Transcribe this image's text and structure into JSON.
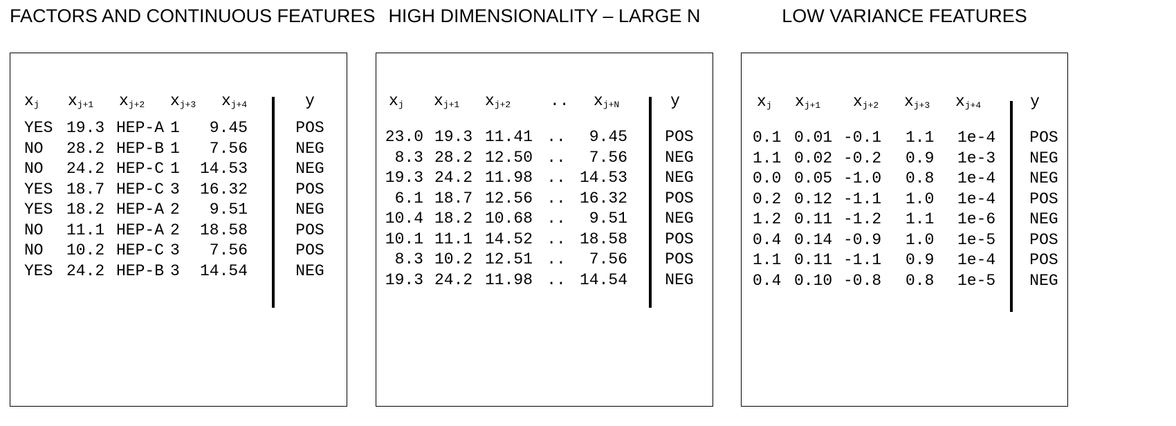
{
  "titles": {
    "left": "FACTORS AND CONTINUOUS FEATURES",
    "middle": "HIGH DIMENSIONALITY – LARGE N",
    "right": "LOW VARIANCE FEATURES"
  },
  "panel1": {
    "headers": [
      {
        "base": "x",
        "sub": "j"
      },
      {
        "base": "x",
        "sub": "j+1"
      },
      {
        "base": "x",
        "sub": "j+2"
      },
      {
        "base": "x",
        "sub": "j+3"
      },
      {
        "base": "x",
        "sub": "j+4"
      },
      {
        "base": "y",
        "sub": ""
      }
    ],
    "columns": [
      [
        "YES",
        "NO",
        "NO",
        "YES",
        "YES",
        "NO",
        "NO",
        "YES"
      ],
      [
        "19.3",
        "28.2",
        "24.2",
        "18.7",
        "18.2",
        "11.1",
        "10.2",
        "24.2"
      ],
      [
        "HEP-A",
        "HEP-B",
        "HEP-C",
        "HEP-C",
        "HEP-A",
        "HEP-A",
        "HEP-C",
        "HEP-B"
      ],
      [
        "1",
        "1",
        "1",
        "3",
        "2",
        "2",
        "3",
        "3"
      ],
      [
        "9.45",
        "7.56",
        "14.53",
        "16.32",
        "9.51",
        "18.58",
        "7.56",
        "14.54"
      ],
      [
        "POS",
        "NEG",
        "NEG",
        "POS",
        "NEG",
        "POS",
        "POS",
        "NEG"
      ]
    ]
  },
  "panel2": {
    "headers": [
      {
        "base": "x",
        "sub": "j"
      },
      {
        "base": "x",
        "sub": "j+1"
      },
      {
        "base": "x",
        "sub": "j+2"
      },
      {
        "base": "..",
        "sub": ""
      },
      {
        "base": "x",
        "sub": "j+N"
      },
      {
        "base": "y",
        "sub": ""
      }
    ],
    "columns": [
      [
        "23.0",
        "8.3",
        "19.3",
        "6.1",
        "10.4",
        "10.1",
        "8.3",
        "19.3"
      ],
      [
        "19.3",
        "28.2",
        "24.2",
        "18.7",
        "18.2",
        "11.1",
        "10.2",
        "24.2"
      ],
      [
        "11.41",
        "12.50",
        "11.98",
        "12.56",
        "10.68",
        "14.52",
        "12.51",
        "11.98"
      ],
      [
        "..",
        "..",
        "..",
        "..",
        "..",
        "..",
        "..",
        ".."
      ],
      [
        "9.45",
        "7.56",
        "14.53",
        "16.32",
        "9.51",
        "18.58",
        "7.56",
        "14.54"
      ],
      [
        "POS",
        "NEG",
        "NEG",
        "POS",
        "NEG",
        "POS",
        "POS",
        "NEG"
      ]
    ]
  },
  "panel3": {
    "headers": [
      {
        "base": "x",
        "sub": "j"
      },
      {
        "base": "x",
        "sub": "j+1"
      },
      {
        "base": "x",
        "sub": "j+2"
      },
      {
        "base": "x",
        "sub": "j+3"
      },
      {
        "base": "x",
        "sub": "j+4"
      },
      {
        "base": "y",
        "sub": ""
      }
    ],
    "columns": [
      [
        "0.1",
        "1.1",
        "0.0",
        "0.2",
        "1.2",
        "0.4",
        "1.1",
        "0.4"
      ],
      [
        "0.01",
        "0.02",
        "0.05",
        "0.12",
        "0.11",
        "0.14",
        "0.11",
        "0.10"
      ],
      [
        "-0.1",
        "-0.2",
        "-1.0",
        "-1.1",
        "-1.2",
        "-0.9",
        "-1.1",
        "-0.8"
      ],
      [
        "1.1",
        "0.9",
        "0.8",
        "1.0",
        "1.1",
        "1.0",
        "0.9",
        "0.8"
      ],
      [
        "1e-4",
        "1e-3",
        "1e-4",
        "1e-4",
        "1e-6",
        "1e-5",
        "1e-4",
        "1e-5"
      ],
      [
        "POS",
        "NEG",
        "NEG",
        "POS",
        "NEG",
        "POS",
        "POS",
        "NEG"
      ]
    ]
  }
}
